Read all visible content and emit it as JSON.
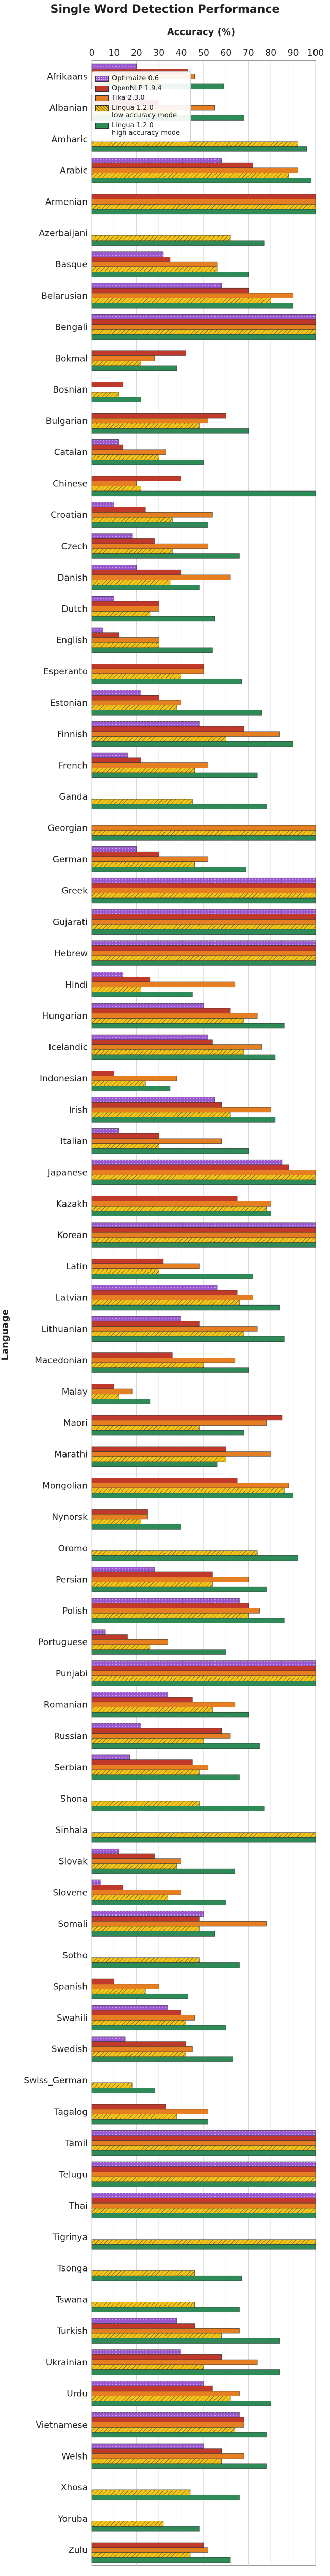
{
  "chart_data": {
    "type": "bar",
    "orientation": "horizontal",
    "title": "Single Word Detection Performance",
    "xlabel": "Accuracy (%)",
    "ylabel": "Language",
    "xlim": [
      0,
      100
    ],
    "xticks": [
      "0",
      "10",
      "20",
      "30",
      "40",
      "50",
      "60",
      "70",
      "80",
      "90",
      "100"
    ],
    "grid": true,
    "legend_position": "top-left",
    "categories": [
      "Afrikaans",
      "Albanian",
      "Amharic",
      "Arabic",
      "Armenian",
      "Azerbaijani",
      "Basque",
      "Belarusian",
      "Bengali",
      "Bokmal",
      "Bosnian",
      "Bulgarian",
      "Catalan",
      "Chinese",
      "Croatian",
      "Czech",
      "Danish",
      "Dutch",
      "English",
      "Esperanto",
      "Estonian",
      "Finnish",
      "French",
      "Ganda",
      "Georgian",
      "German",
      "Greek",
      "Gujarati",
      "Hebrew",
      "Hindi",
      "Hungarian",
      "Icelandic",
      "Indonesian",
      "Irish",
      "Italian",
      "Japanese",
      "Kazakh",
      "Korean",
      "Latin",
      "Latvian",
      "Lithuanian",
      "Macedonian",
      "Malay",
      "Maori",
      "Marathi",
      "Mongolian",
      "Nynorsk",
      "Oromo",
      "Persian",
      "Polish",
      "Portuguese",
      "Punjabi",
      "Romanian",
      "Russian",
      "Serbian",
      "Shona",
      "Sinhala",
      "Slovak",
      "Slovene",
      "Somali",
      "Sotho",
      "Spanish",
      "Swahili",
      "Swedish",
      "Swiss_German",
      "Tagalog",
      "Tamil",
      "Telugu",
      "Thai",
      "Tigrinya",
      "Tsonga",
      "Tswana",
      "Turkish",
      "Ukrainian",
      "Urdu",
      "Vietnamese",
      "Welsh",
      "Xhosa",
      "Yoruba",
      "Zulu"
    ],
    "series": [
      {
        "name": "Optimaize 0.6",
        "color": "#9b59d0",
        "hatch": "dots",
        "values": [
          20,
          24,
          0,
          58,
          0,
          0,
          32,
          58,
          100,
          0,
          0,
          0,
          12,
          0,
          10,
          18,
          20,
          10,
          5,
          0,
          22,
          48,
          16,
          0,
          0,
          20,
          100,
          100,
          100,
          14,
          50,
          52,
          0,
          55,
          12,
          85,
          0,
          100,
          0,
          56,
          40,
          0,
          0,
          0,
          0,
          0,
          0,
          0,
          28,
          66,
          6,
          100,
          34,
          22,
          17,
          0,
          0,
          12,
          4,
          50,
          0,
          0,
          34,
          15,
          0,
          0,
          100,
          100,
          100,
          0,
          0,
          0,
          38,
          40,
          50,
          66,
          50,
          0,
          0,
          0
        ]
      },
      {
        "name": "OpenNLP 1.9.4",
        "color": "#c0392b",
        "hatch": "none",
        "values": [
          43,
          30,
          0,
          72,
          100,
          0,
          35,
          70,
          100,
          42,
          14,
          60,
          14,
          40,
          24,
          28,
          40,
          30,
          12,
          50,
          30,
          68,
          22,
          0,
          0,
          30,
          100,
          100,
          100,
          26,
          62,
          54,
          10,
          58,
          30,
          88,
          65,
          100,
          32,
          65,
          48,
          36,
          10,
          85,
          60,
          65,
          25,
          0,
          54,
          70,
          16,
          100,
          45,
          58,
          45,
          0,
          0,
          28,
          14,
          48,
          0,
          10,
          40,
          42,
          0,
          33,
          100,
          100,
          100,
          0,
          0,
          0,
          46,
          58,
          54,
          68,
          58,
          0,
          0,
          50
        ]
      },
      {
        "name": "Tika 2.3.0",
        "color": "#e67e22",
        "hatch": "none",
        "values": [
          46,
          55,
          0,
          92,
          100,
          0,
          56,
          90,
          100,
          28,
          0,
          52,
          33,
          20,
          54,
          52,
          62,
          30,
          30,
          50,
          40,
          84,
          52,
          0,
          100,
          52,
          100,
          100,
          100,
          64,
          74,
          76,
          38,
          80,
          58,
          100,
          80,
          100,
          48,
          72,
          74,
          64,
          18,
          78,
          80,
          88,
          25,
          0,
          70,
          75,
          34,
          100,
          64,
          62,
          52,
          0,
          0,
          40,
          40,
          78,
          0,
          30,
          46,
          45,
          0,
          52,
          100,
          100,
          100,
          0,
          0,
          0,
          66,
          74,
          66,
          68,
          68,
          0,
          0,
          52
        ]
      },
      {
        "name": "Lingua 1.2.0\nlow accuracy mode",
        "color": "#f5c518",
        "hatch": "diagonal",
        "values": [
          30,
          38,
          92,
          88,
          100,
          62,
          56,
          80,
          100,
          22,
          12,
          48,
          30,
          22,
          36,
          36,
          35,
          26,
          30,
          40,
          38,
          60,
          46,
          45,
          100,
          46,
          100,
          100,
          100,
          22,
          68,
          68,
          24,
          62,
          30,
          100,
          78,
          100,
          30,
          66,
          68,
          50,
          12,
          48,
          60,
          86,
          22,
          74,
          54,
          70,
          26,
          100,
          54,
          50,
          48,
          48,
          100,
          38,
          34,
          48,
          48,
          24,
          42,
          42,
          18,
          38,
          100,
          100,
          100,
          100,
          46,
          46,
          58,
          50,
          62,
          64,
          58,
          44,
          32,
          44
        ]
      },
      {
        "name": "Lingua 1.2.0\nhigh accuracy mode",
        "color": "#2e8b57",
        "hatch": "none",
        "values": [
          59,
          68,
          96,
          98,
          100,
          77,
          70,
          90,
          100,
          38,
          22,
          70,
          50,
          100,
          52,
          66,
          48,
          55,
          54,
          67,
          76,
          90,
          74,
          78,
          100,
          69,
          100,
          100,
          100,
          45,
          86,
          82,
          35,
          82,
          70,
          100,
          80,
          100,
          72,
          84,
          86,
          70,
          26,
          68,
          56,
          90,
          40,
          92,
          78,
          86,
          60,
          100,
          70,
          75,
          66,
          77,
          100,
          64,
          60,
          55,
          66,
          43,
          60,
          63,
          28,
          52,
          100,
          100,
          100,
          100,
          67,
          66,
          84,
          84,
          80,
          78,
          78,
          66,
          48,
          62
        ]
      }
    ]
  }
}
